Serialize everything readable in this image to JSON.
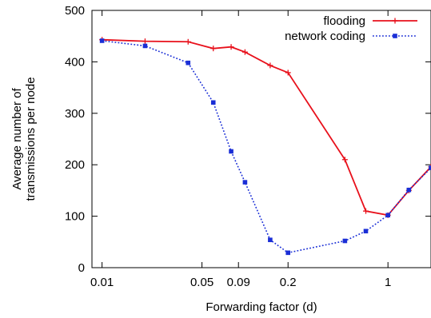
{
  "chart_data": {
    "type": "line",
    "title": "",
    "xlabel": "Forwarding factor (d)",
    "ylabel_lines": [
      "Average number of",
      "transmissions per node"
    ],
    "xscale": "log",
    "xlim": [
      0.0085,
      2.0
    ],
    "ylim": [
      0,
      500
    ],
    "yticks": [
      0,
      100,
      200,
      300,
      400,
      500
    ],
    "yticklabels": [
      "0",
      "100",
      "200",
      "300",
      "400",
      "500"
    ],
    "xticks": [
      0.01,
      0.05,
      0.09,
      0.2,
      1
    ],
    "xticklabels": [
      "0.01",
      "0.05",
      "0.09",
      "0.2",
      "1"
    ],
    "grid": false,
    "legend_position": "top-right",
    "series": [
      {
        "name": "flooding",
        "color": "#e8101b",
        "line_style": "solid",
        "marker": "plus",
        "x": [
          0.01,
          0.02,
          0.04,
          0.06,
          0.08,
          0.1,
          0.15,
          0.2,
          0.5,
          0.7,
          1.0,
          1.4,
          2.0
        ],
        "y": [
          443,
          440,
          439,
          426,
          429,
          419,
          393,
          379,
          210,
          110,
          102,
          150,
          196
        ]
      },
      {
        "name": "network coding",
        "color": "#1a2ed6",
        "line_style": "dotted",
        "marker": "square",
        "x": [
          0.01,
          0.02,
          0.04,
          0.06,
          0.08,
          0.1,
          0.15,
          0.2,
          0.5,
          0.7,
          1.0,
          1.4,
          2.0
        ],
        "y": [
          441,
          431,
          398,
          321,
          226,
          166,
          54,
          29,
          52,
          71,
          102,
          151,
          194
        ]
      }
    ]
  }
}
